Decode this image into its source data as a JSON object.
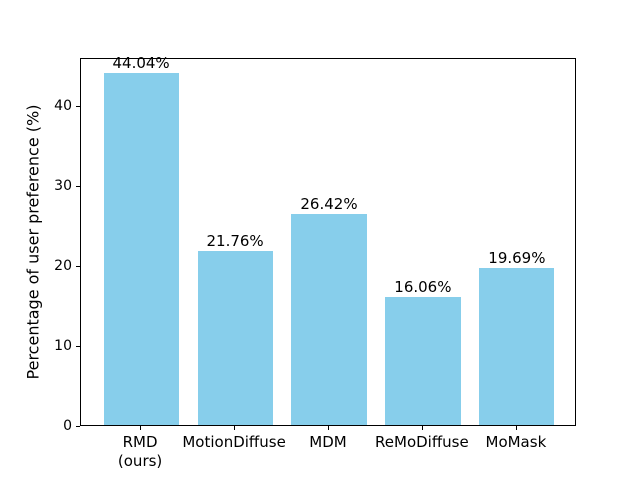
{
  "chart_data": {
    "type": "bar",
    "title": "",
    "xlabel": "",
    "ylabel": "Percentage of user preference (%)",
    "categories": [
      "RMD\n(ours)",
      "MotionDiffuse",
      "MDM",
      "ReMoDiffuse",
      "MoMask"
    ],
    "values": [
      44.04,
      21.76,
      26.42,
      16.06,
      19.69
    ],
    "value_labels": [
      "44.04%",
      "21.76%",
      "26.42%",
      "16.06%",
      "19.69%"
    ],
    "ylim": [
      0,
      46
    ],
    "yticks": [
      0,
      10,
      20,
      30,
      40
    ],
    "bar_color": "#87CEEB",
    "spine_color": "#000000",
    "text_color": "#000000",
    "background_color": "#ffffff",
    "grid": false,
    "legend": null
  }
}
